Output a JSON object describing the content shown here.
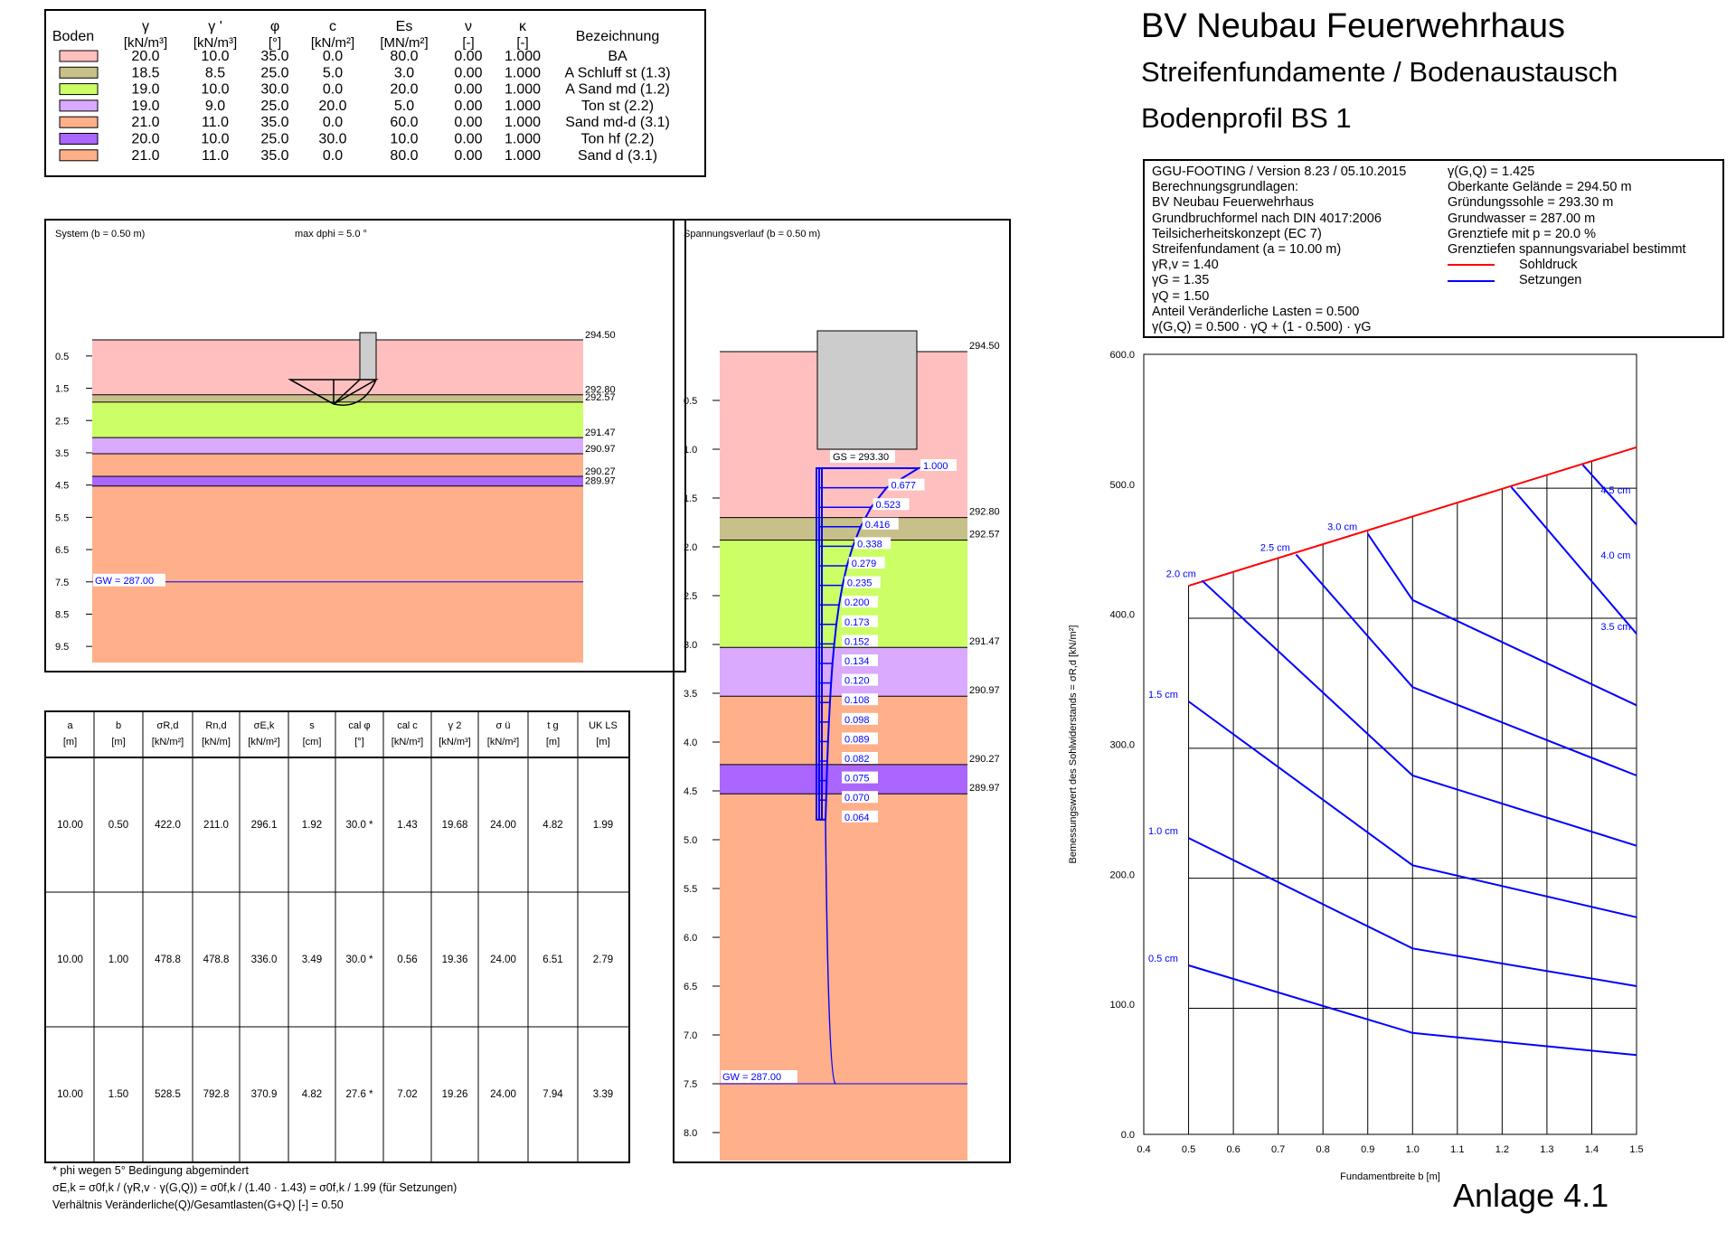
{
  "header": {
    "title": "BV Neubau Feuerwehrhaus",
    "subtitle1": "Streifenfundamente / Bodenaustausch",
    "subtitle2": "Bodenprofil BS 1",
    "anlage": "Anlage 4.1"
  },
  "soil_table": {
    "headers": [
      {
        "top": "Boden",
        "bottom": ""
      },
      {
        "top": "γ",
        "bottom": "[kN/m³]"
      },
      {
        "top": "γ '",
        "bottom": "[kN/m³]"
      },
      {
        "top": "φ",
        "bottom": "[°]"
      },
      {
        "top": "c",
        "bottom": "[kN/m²]"
      },
      {
        "top": "Es",
        "bottom": "[MN/m²]"
      },
      {
        "top": "ν",
        "bottom": "[-]"
      },
      {
        "top": "κ",
        "bottom": "[-]"
      },
      {
        "top": "Bezeichnung",
        "bottom": ""
      }
    ],
    "rows": [
      {
        "color": "#FFBFBF",
        "gamma": "20.0",
        "gamma_p": "10.0",
        "phi": "35.0",
        "c": "0.0",
        "es": "80.0",
        "nu": "0.00",
        "kappa": "1.000",
        "name": "BA"
      },
      {
        "color": "#C8C08A",
        "gamma": "18.5",
        "gamma_p": "8.5",
        "phi": "25.0",
        "c": "5.0",
        "es": "3.0",
        "nu": "0.00",
        "kappa": "1.000",
        "name": "A Schluff st (1.3)"
      },
      {
        "color": "#CCFF66",
        "gamma": "19.0",
        "gamma_p": "10.0",
        "phi": "30.0",
        "c": "0.0",
        "es": "20.0",
        "nu": "0.00",
        "kappa": "1.000",
        "name": "A Sand md (1.2)"
      },
      {
        "color": "#D9AAFF",
        "gamma": "19.0",
        "gamma_p": "9.0",
        "phi": "25.0",
        "c": "20.0",
        "es": "5.0",
        "nu": "0.00",
        "kappa": "1.000",
        "name": "Ton st (2.2)"
      },
      {
        "color": "#FFAF8A",
        "gamma": "21.0",
        "gamma_p": "11.0",
        "phi": "35.0",
        "c": "0.0",
        "es": "60.0",
        "nu": "0.00",
        "kappa": "1.000",
        "name": "Sand md-d (3.1)"
      },
      {
        "color": "#AA66FF",
        "gamma": "20.0",
        "gamma_p": "10.0",
        "phi": "25.0",
        "c": "30.0",
        "es": "10.0",
        "nu": "0.00",
        "kappa": "1.000",
        "name": "Ton hf (2.2)"
      },
      {
        "color": "#FFAF8A",
        "gamma": "21.0",
        "gamma_p": "11.0",
        "phi": "35.0",
        "c": "0.0",
        "es": "80.0",
        "nu": "0.00",
        "kappa": "1.000",
        "name": "Sand d (3.1)"
      }
    ]
  },
  "info": {
    "left": [
      "GGU-FOOTING / Version 8.23 / 05.10.2015",
      "Berechnungsgrundlagen:",
      "BV Neubau Feuerwehrhaus",
      "Grundbruchformel nach DIN 4017:2006",
      "Teilsicherheitskonzept (EC 7)",
      "Streifenfundament (a = 10.00 m)",
      "γR,v = 1.40",
      "γG = 1.35",
      "γQ = 1.50",
      "Anteil Veränderliche Lasten = 0.500",
      "γ(G,Q) = 0.500 · γQ + (1 - 0.500) · γG"
    ],
    "right": [
      "γ(G,Q) = 1.425",
      "Oberkante Gelände = 294.50 m",
      "Gründungssohle = 293.30 m",
      "Grundwasser = 287.00 m",
      "Grenztiefe mit p = 20.0 %",
      "Grenztiefen spannungsvariabel bestimmt"
    ],
    "legend": [
      {
        "label": "Sohldruck",
        "color": "#FF0000"
      },
      {
        "label": "Setzungen",
        "color": "#0000FF"
      }
    ]
  },
  "system": {
    "title": "System (b = 0.50 m)",
    "dphi": "max dphi = 5.0 °",
    "depth_ticks": [
      "0.5",
      "1.5",
      "2.5",
      "3.5",
      "4.5",
      "5.5",
      "6.5",
      "7.5",
      "8.5",
      "9.5"
    ],
    "layers": [
      {
        "top": 0.0,
        "bottom": 1.7,
        "color": "#FFBFBF"
      },
      {
        "top": 1.7,
        "bottom": 1.93,
        "color": "#C8C08A"
      },
      {
        "top": 1.93,
        "bottom": 3.03,
        "color": "#CCFF66"
      },
      {
        "top": 3.03,
        "bottom": 3.53,
        "color": "#D9AAFF"
      },
      {
        "top": 3.53,
        "bottom": 4.23,
        "color": "#FFAF8A"
      },
      {
        "top": 4.23,
        "bottom": 4.53,
        "color": "#AA66FF"
      },
      {
        "top": 4.53,
        "bottom": 10.0,
        "color": "#FFAF8A"
      }
    ],
    "elevations": [
      {
        "depth": 0.0,
        "label": "294.50"
      },
      {
        "depth": 1.7,
        "label": "292.80"
      },
      {
        "depth": 1.93,
        "label": "292.57"
      },
      {
        "depth": 3.03,
        "label": "291.47"
      },
      {
        "depth": 3.53,
        "label": "290.97"
      },
      {
        "depth": 4.23,
        "label": "290.27"
      },
      {
        "depth": 4.53,
        "label": "289.97"
      }
    ],
    "gw_label": "GW = 287.00",
    "gw_depth": 7.5
  },
  "stress": {
    "title": "Spannungsverlauf (b = 0.50 m)",
    "depth_ticks": [
      "0.5",
      "1.0",
      "1.5",
      "2.0",
      "2.5",
      "3.0",
      "3.5",
      "4.0",
      "4.5",
      "5.0",
      "5.5",
      "6.0",
      "6.5",
      "7.0",
      "7.5",
      "8.0"
    ],
    "gs_label": "GS = 293.30",
    "gw_label": "GW = 287.00",
    "elevations": [
      "294.50",
      "292.80",
      "292.57",
      "291.47",
      "290.97",
      "290.27",
      "289.97"
    ],
    "values": [
      "1.000",
      "0.677",
      "0.523",
      "0.416",
      "0.338",
      "0.279",
      "0.235",
      "0.200",
      "0.173",
      "0.152",
      "0.134",
      "0.120",
      "0.108",
      "0.098",
      "0.089",
      "0.082",
      "0.075",
      "0.070",
      "0.064"
    ]
  },
  "results_table": {
    "headers": [
      {
        "top": "a",
        "bottom": "[m]"
      },
      {
        "top": "b",
        "bottom": "[m]"
      },
      {
        "top": "σR,d",
        "bottom": "[kN/m²]"
      },
      {
        "top": "Rn,d",
        "bottom": "[kN/m]"
      },
      {
        "top": "σE,k",
        "bottom": "[kN/m²]"
      },
      {
        "top": "s",
        "bottom": "[cm]"
      },
      {
        "top": "cal φ",
        "bottom": "[°]"
      },
      {
        "top": "cal c",
        "bottom": "[kN/m²]"
      },
      {
        "top": "γ 2",
        "bottom": "[kN/m³]"
      },
      {
        "top": "σ ü",
        "bottom": "[kN/m²]"
      },
      {
        "top": "t g",
        "bottom": "[m]"
      },
      {
        "top": "UK LS",
        "bottom": "[m]"
      }
    ],
    "rows": [
      [
        "10.00",
        "0.50",
        "422.0",
        "211.0",
        "296.1",
        "1.92",
        "30.0 *",
        "1.43",
        "19.68",
        "24.00",
        "4.82",
        "1.99"
      ],
      [
        "10.00",
        "1.00",
        "478.8",
        "478.8",
        "336.0",
        "3.49",
        "30.0 *",
        "0.56",
        "19.36",
        "24.00",
        "6.51",
        "2.79"
      ],
      [
        "10.00",
        "1.50",
        "528.5",
        "792.8",
        "370.9",
        "4.82",
        "27.6 *",
        "7.02",
        "19.26",
        "24.00",
        "7.94",
        "3.39"
      ]
    ],
    "footnotes": [
      "*  phi wegen 5° Bedingung abgemindert",
      "σE,k = σ0f,k / (γR,v · γ(G,Q)) = σ0f,k / (1.40 · 1.43) = σ0f,k / 1.99  (für Setzungen)",
      "Verhältnis Veränderliche(Q)/Gesamtlasten(G+Q) [-] = 0.50"
    ]
  },
  "chart_data": {
    "type": "line",
    "xlabel": "Fundamentbreite b [m]",
    "ylabel": "Bemessungswert des Sohlwiderstands = σR,d [kN/m²]",
    "xlim": [
      0.4,
      1.5
    ],
    "ylim": [
      0,
      600
    ],
    "x_ticks": [
      "0.4",
      "0.5",
      "0.6",
      "0.7",
      "0.8",
      "0.9",
      "1.0",
      "1.1",
      "1.2",
      "1.3",
      "1.4",
      "1.5"
    ],
    "y_ticks": [
      "0.0",
      "100.0",
      "200.0",
      "300.0",
      "400.0",
      "500.0",
      "600.0"
    ],
    "sohldruck": {
      "name": "Sohldruck",
      "x": [
        0.5,
        1.5
      ],
      "y": [
        422.0,
        528.5
      ]
    },
    "series": [
      {
        "name": "0.5 cm",
        "x": [
          0.5,
          1.0,
          1.5
        ],
        "y": [
          130,
          78,
          61
        ]
      },
      {
        "name": "1.0 cm",
        "x": [
          0.5,
          1.0,
          1.5
        ],
        "y": [
          228,
          143,
          114
        ]
      },
      {
        "name": "1.5 cm",
        "x": [
          0.5,
          1.0,
          1.5
        ],
        "y": [
          333,
          207,
          167
        ]
      },
      {
        "name": "2.0 cm",
        "x": [
          0.53,
          1.0,
          1.5
        ],
        "y": [
          426,
          276,
          222
        ]
      },
      {
        "name": "2.5 cm",
        "x": [
          0.74,
          1.0,
          1.5
        ],
        "y": [
          446,
          344,
          276
        ]
      },
      {
        "name": "3.0 cm",
        "x": [
          0.9,
          1.0,
          1.5
        ],
        "y": [
          462,
          411,
          330
        ]
      },
      {
        "name": "3.5 cm",
        "x": [
          1.22,
          1.5
        ],
        "y": [
          498,
          385
        ]
      },
      {
        "name": "4.0 cm",
        "x": [
          1.38,
          1.5
        ],
        "y": [
          515,
          469
        ]
      },
      {
        "name": "4.5 cm",
        "x": [
          1.5
        ],
        "y": [
          528
        ]
      }
    ]
  }
}
